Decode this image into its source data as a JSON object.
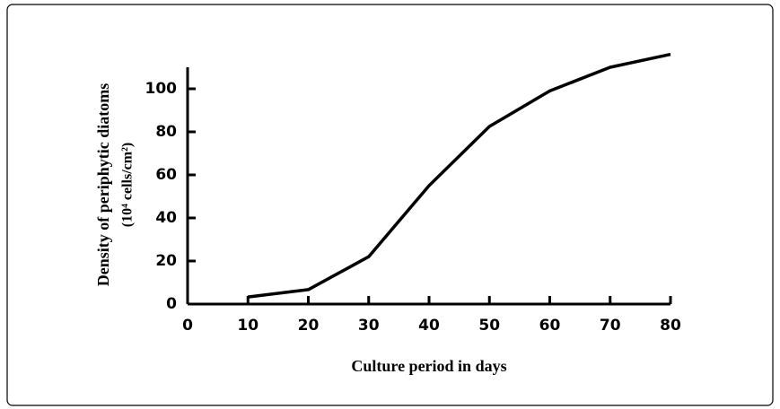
{
  "chart_data": {
    "type": "line",
    "y_label": [
      "Density of periphytic diatoms",
      "(10⁴ cells/cm²)"
    ],
    "x_label": "Culture period in days",
    "x": [
      10,
      20,
      30,
      40,
      50,
      60,
      70,
      80
    ],
    "series": [
      {
        "color": "#000000",
        "values": [
          3.3,
          6.7,
          22,
          55,
          82.5,
          99,
          110,
          116
        ]
      }
    ],
    "xlim": [
      0,
      80
    ],
    "xticks": [
      0,
      10,
      20,
      30,
      40,
      50,
      60,
      70,
      80
    ],
    "ylim": [
      0,
      110
    ],
    "yticks": [
      0,
      20,
      40,
      60,
      80,
      100
    ]
  }
}
